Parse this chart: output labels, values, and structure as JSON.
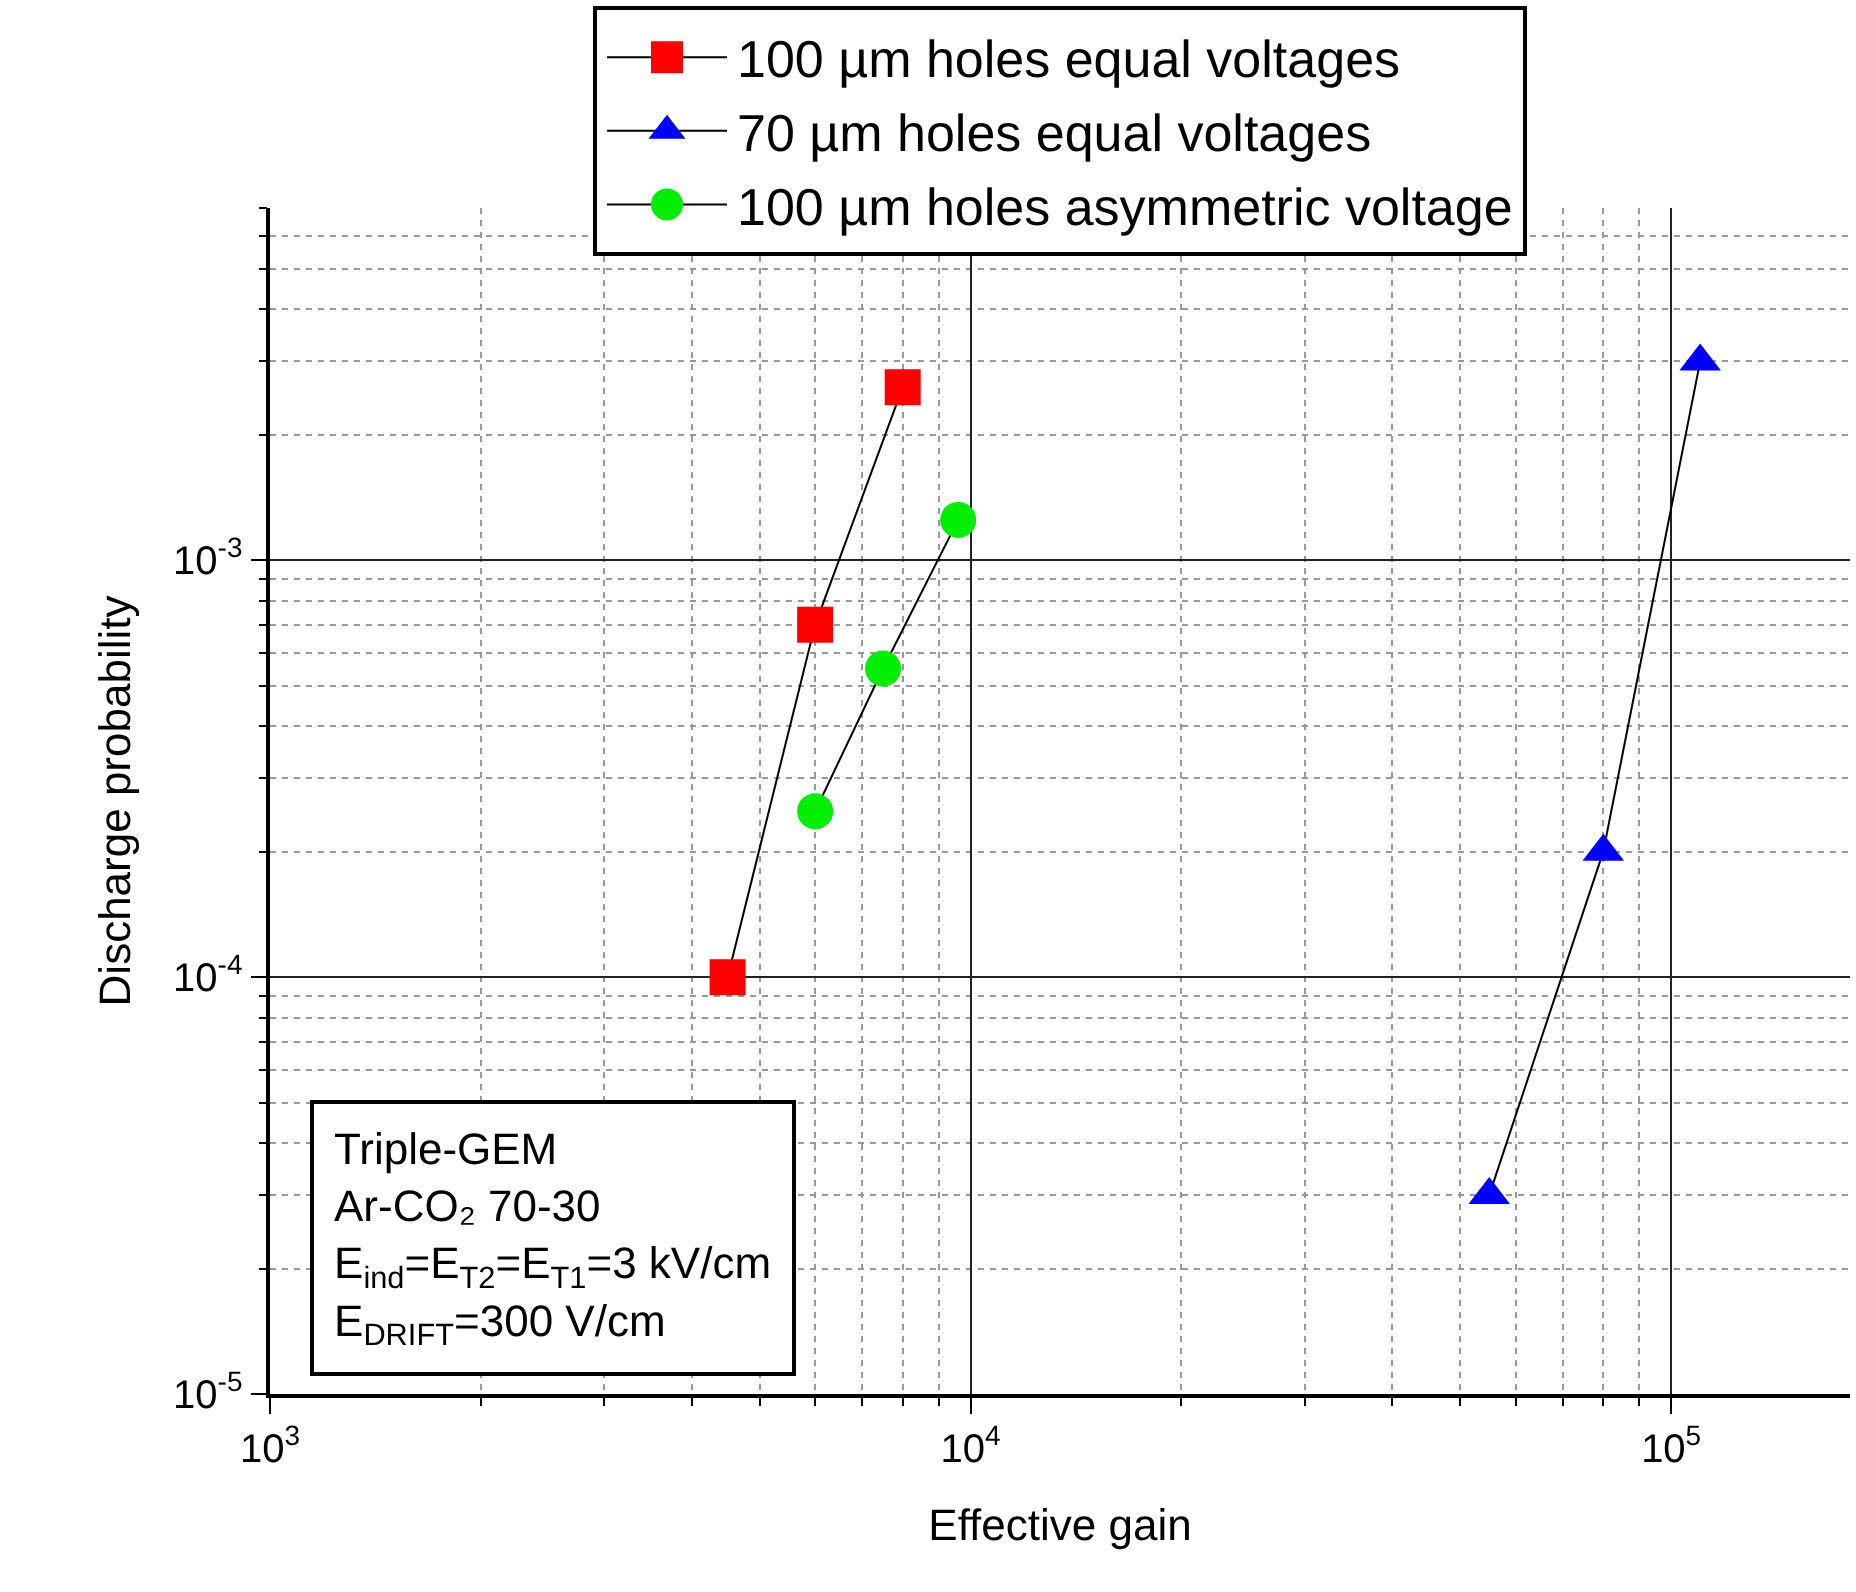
{
  "chart_data": {
    "type": "line",
    "xlabel": "Effective gain",
    "ylabel": "Discharge probability",
    "log": "xy",
    "grid": true,
    "legend": "top",
    "line_style": "solid",
    "xlim": [
      1000,
      180000
    ],
    "xticks": [
      {
        "value": 1000,
        "label": "10$^{3}$"
      },
      {
        "value": 10000,
        "label": "10$^{4}$"
      },
      {
        "value": 100000,
        "label": "10$^{5}$"
      }
    ],
    "ylim": [
      1e-05,
      0.007
    ],
    "yticks": [
      {
        "value": 1e-05,
        "label": "10$^{-5}$"
      },
      {
        "value": 0.0001,
        "label": "10$^{-4}$"
      },
      {
        "value": 0.001,
        "label": "10$^{-3}$"
      }
    ],
    "series": [
      {
        "name": "100 µm holes equal voltages",
        "color": "#ff0000",
        "marker": "square",
        "x": [
          4500,
          6000,
          8000
        ],
        "values": [
          0.0001,
          0.0007,
          0.0026
        ]
      },
      {
        "name": "70 µm holes equal voltages",
        "color": "#0000ff",
        "marker": "triangle",
        "x": [
          55000,
          80000,
          110000
        ],
        "values": [
          3e-05,
          0.0002,
          0.003
        ]
      },
      {
        "name": "100 µm holes asymmetric voltage",
        "color": "#00ee00",
        "marker": "circle",
        "x": [
          6000,
          7500,
          9600
        ],
        "values": [
          0.00025,
          0.00055,
          0.00125
        ]
      }
    ],
    "annotations": [
      "Triple-GEM\nAr-CO₂ 70-30\nE$_{ind}$=E$_{T2}$=E$_{T1}$=3 kV/cm\nE$_{DRIFT}$=300 V/cm"
    ]
  }
}
